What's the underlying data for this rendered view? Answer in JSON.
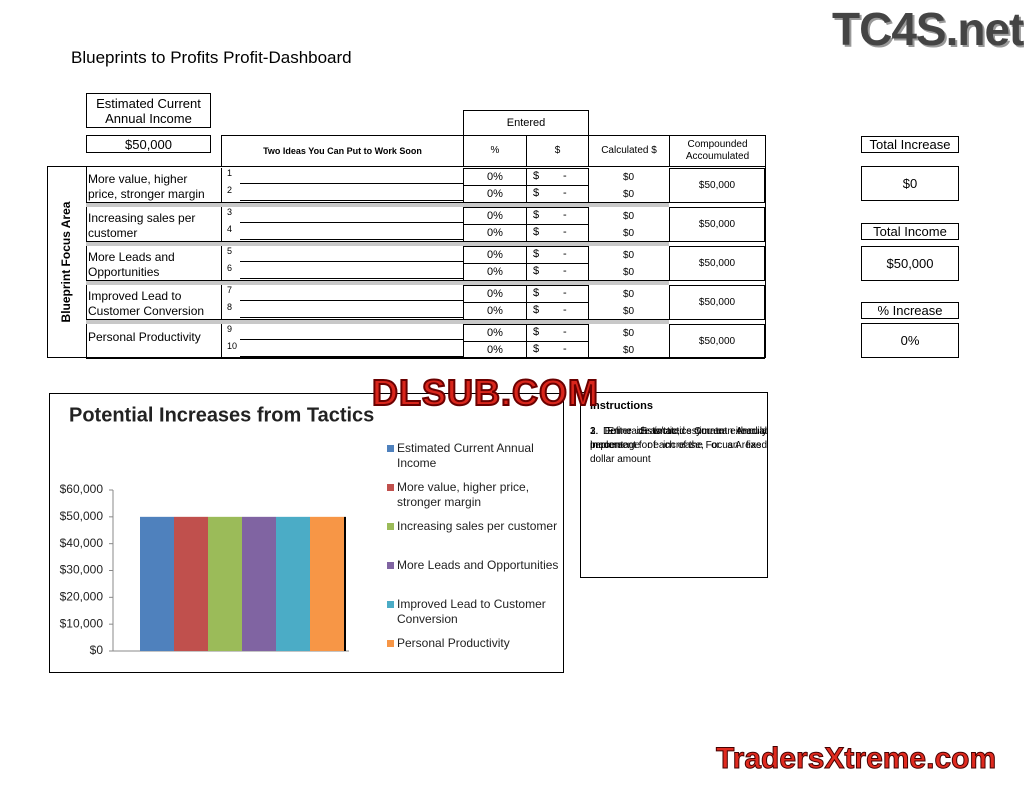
{
  "title": "Blueprints to Profits Profit-Dashboard",
  "watermarks": [
    "TC4S.net",
    "DLSUB.COM",
    "TradersXtreme.com"
  ],
  "income": {
    "label": "Estimated Current Annual Income",
    "value": "$50,000"
  },
  "table": {
    "side_label": "Blueprint Focus Area",
    "entered": "Entered",
    "columns": [
      "Two Ideas You Can Put to Work Soon",
      "%",
      "$",
      "Calculated $",
      "Compounded Accoumulated"
    ],
    "areas": [
      {
        "name": "More value, higher price, stronger margin",
        "compounded": "$50,000",
        "ideas": [
          {
            "num": "1",
            "pct": "0%",
            "currency": "$",
            "dollar": "-",
            "calc": "$0"
          },
          {
            "num": "2",
            "pct": "0%",
            "currency": "$",
            "dollar": "-",
            "calc": "$0"
          }
        ]
      },
      {
        "name": "Increasing sales per customer",
        "compounded": "$50,000",
        "ideas": [
          {
            "num": "3",
            "pct": "0%",
            "currency": "$",
            "dollar": "-",
            "calc": "$0"
          },
          {
            "num": "4",
            "pct": "0%",
            "currency": "$",
            "dollar": "-",
            "calc": "$0"
          }
        ]
      },
      {
        "name": "More Leads and Opportunities",
        "compounded": "$50,000",
        "ideas": [
          {
            "num": "5",
            "pct": "0%",
            "currency": "$",
            "dollar": "-",
            "calc": "$0"
          },
          {
            "num": "6",
            "pct": "0%",
            "currency": "$",
            "dollar": "-",
            "calc": "$0"
          }
        ]
      },
      {
        "name": "Improved Lead to Customer Conversion",
        "compounded": "$50,000",
        "ideas": [
          {
            "num": "7",
            "pct": "0%",
            "currency": "$",
            "dollar": "-",
            "calc": "$0"
          },
          {
            "num": "8",
            "pct": "0%",
            "currency": "$",
            "dollar": "-",
            "calc": "$0"
          }
        ]
      },
      {
        "name": "Personal Productivity",
        "compounded": "$50,000",
        "ideas": [
          {
            "num": "9",
            "pct": "0%",
            "currency": "$",
            "dollar": "-",
            "calc": "$0"
          },
          {
            "num": "10",
            "pct": "0%",
            "currency": "$",
            "dollar": "-",
            "calc": "$0"
          }
        ]
      }
    ]
  },
  "totals": [
    {
      "label": "Total Increase",
      "value": "$0"
    },
    {
      "label": "Total Income",
      "value": "$50,000"
    },
    {
      "label": "% Increase",
      "value": "0%"
    }
  ],
  "instructions": {
    "title": "Instructions",
    "items": [
      "1. Enter Estimated Current Annual Income",
      "2. Define ideas/tactics you can readily implement for each of the Focus Areas",
      "3. For each tactic, estimate either a percentage of increase, or an fixed dollar amount"
    ]
  },
  "chart_data": {
    "type": "bar",
    "title": "Potential Increases from Tactics",
    "categories": [
      null
    ],
    "series": [
      {
        "name": "Estimated Current Annual Income",
        "color": "#4f81bd",
        "values": [
          50000
        ]
      },
      {
        "name": "More value, higher price, stronger margin",
        "color": "#c0504d",
        "values": [
          50000
        ]
      },
      {
        "name": "Increasing sales per customer",
        "color": "#9bbb59",
        "values": [
          50000
        ]
      },
      {
        "name": "More Leads and Opportunities",
        "color": "#8064a2",
        "values": [
          50000
        ]
      },
      {
        "name": "Improved Lead to Customer Conversion",
        "color": "#4bacc6",
        "values": [
          50000
        ]
      },
      {
        "name": "Personal Productivity",
        "color": "#f79646",
        "values": [
          50000
        ]
      }
    ],
    "ylim": [
      0,
      60000
    ],
    "yticks": [
      {
        "value": 0,
        "label": "$0"
      },
      {
        "value": 10000,
        "label": "$10,000"
      },
      {
        "value": 20000,
        "label": "$20,000"
      },
      {
        "value": 30000,
        "label": "$30,000"
      },
      {
        "value": 40000,
        "label": "$40,000"
      },
      {
        "value": 50000,
        "label": "$50,000"
      },
      {
        "value": 60000,
        "label": "$60,000"
      }
    ],
    "legend": "right"
  }
}
